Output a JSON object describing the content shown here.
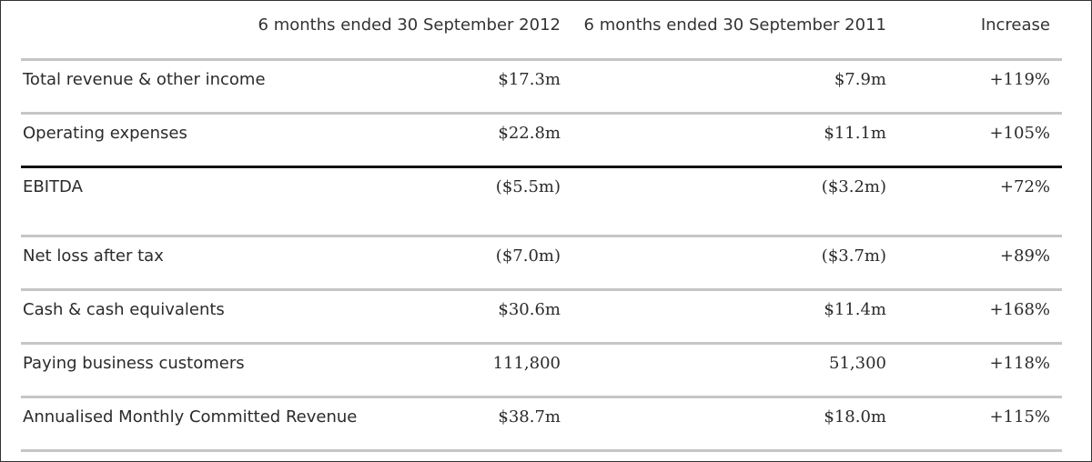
{
  "headers": {
    "col1": "6 months ended 30 September 2012",
    "col2": "6 months ended 30 September 2011",
    "col3": "Increase"
  },
  "rows": [
    {
      "label": "Total revenue & other income",
      "y2012": "$17.3m",
      "y2011": "$7.9m",
      "increase": "+119%"
    },
    {
      "label": "Operating expenses",
      "y2012": "$22.8m",
      "y2011": "$11.1m",
      "increase": "+105%"
    },
    {
      "label": "EBITDA",
      "y2012": "($5.5m)",
      "y2011": "($3.2m)",
      "increase": "+72%"
    },
    {
      "label": "Net loss after tax",
      "y2012": "($7.0m)",
      "y2011": "($3.7m)",
      "increase": "+89%"
    },
    {
      "label": "Cash & cash equivalents",
      "y2012": "$30.6m",
      "y2011": "$11.4m",
      "increase": "+168%"
    },
    {
      "label": "Paying business customers",
      "y2012": "111,800",
      "y2011": "51,300",
      "increase": "+118%"
    },
    {
      "label": "Annualised Monthly Committed Revenue",
      "y2012": "$38.7m",
      "y2011": "$18.0m",
      "increase": "+115%"
    }
  ]
}
